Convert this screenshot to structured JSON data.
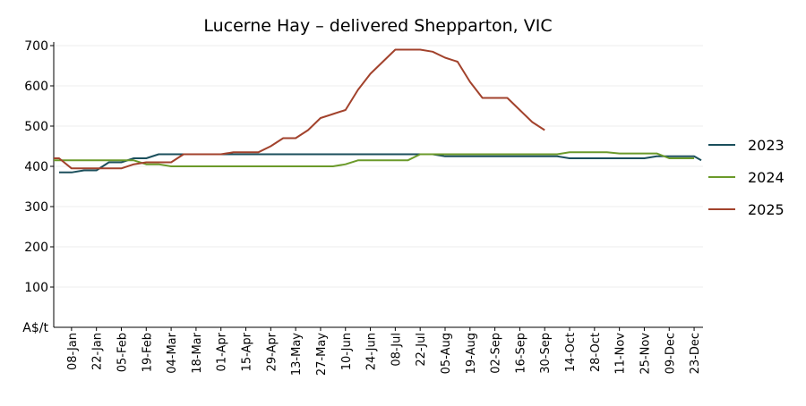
{
  "chart_data": {
    "type": "line",
    "title": "Lucerne Hay – delivered Shepparton, VIC",
    "xlabel": "",
    "ylabel": "A$/t",
    "ylim": [
      0,
      700
    ],
    "yticks": [
      700,
      600,
      500,
      400,
      300,
      200,
      100
    ],
    "x_range": [
      0,
      357
    ],
    "categories": [
      "08-Jan",
      "22-Jan",
      "05-Feb",
      "19-Feb",
      "04-Mar",
      "18-Mar",
      "01-Apr",
      "15-Apr",
      "29-Apr",
      "13-May",
      "27-May",
      "10-Jun",
      "24-Jun",
      "08-Jul",
      "22-Jul",
      "05-Aug",
      "19-Aug",
      "02-Sep",
      "16-Sep",
      "30-Sep",
      "14-Oct",
      "28-Oct",
      "11-Nov",
      "25-Nov",
      "09-Dec",
      "23-Dec"
    ],
    "category_x": [
      7,
      21,
      35,
      49,
      63,
      77,
      91,
      105,
      119,
      133,
      147,
      161,
      175,
      189,
      203,
      217,
      231,
      245,
      259,
      273,
      287,
      301,
      315,
      329,
      343,
      357
    ],
    "grid": true,
    "legend_position": "right",
    "series": [
      {
        "name": "2023",
        "color": "#1b4f5c",
        "x": [
          0,
          7,
          14,
          21,
          28,
          35,
          42,
          49,
          56,
          63,
          70,
          77,
          84,
          91,
          98,
          105,
          112,
          119,
          126,
          133,
          140,
          147,
          154,
          161,
          168,
          175,
          182,
          189,
          196,
          203,
          210,
          217,
          224,
          231,
          238,
          245,
          252,
          259,
          266,
          273,
          280,
          287,
          294,
          301,
          308,
          315,
          322,
          329,
          336,
          343,
          350,
          357,
          361
        ],
        "values": [
          385,
          385,
          390,
          390,
          410,
          410,
          420,
          420,
          430,
          430,
          430,
          430,
          430,
          430,
          430,
          430,
          430,
          430,
          430,
          430,
          430,
          430,
          430,
          430,
          430,
          430,
          430,
          430,
          430,
          430,
          430,
          425,
          425,
          425,
          425,
          425,
          425,
          425,
          425,
          425,
          425,
          420,
          420,
          420,
          420,
          420,
          420,
          420,
          425,
          425,
          425,
          425,
          415
        ]
      },
      {
        "name": "2024",
        "color": "#6b9a2a",
        "x": [
          -3,
          0,
          7,
          14,
          21,
          28,
          35,
          42,
          49,
          56,
          63,
          70,
          77,
          84,
          91,
          98,
          105,
          112,
          119,
          126,
          133,
          140,
          147,
          154,
          161,
          168,
          175,
          182,
          189,
          196,
          203,
          210,
          217,
          224,
          231,
          238,
          245,
          252,
          259,
          266,
          273,
          280,
          287,
          294,
          301,
          308,
          315,
          322,
          329,
          336,
          343,
          350,
          357
        ],
        "values": [
          415,
          415,
          415,
          415,
          415,
          415,
          415,
          415,
          405,
          405,
          400,
          400,
          400,
          400,
          400,
          400,
          400,
          400,
          400,
          400,
          400,
          400,
          400,
          400,
          405,
          415,
          415,
          415,
          415,
          415,
          430,
          430,
          430,
          430,
          430,
          430,
          430,
          430,
          430,
          430,
          430,
          430,
          435,
          435,
          435,
          435,
          432,
          432,
          432,
          432,
          420,
          420,
          420
        ]
      },
      {
        "name": "2025",
        "color": "#a2422c",
        "x": [
          -3,
          0,
          7,
          14,
          21,
          28,
          35,
          42,
          49,
          56,
          63,
          70,
          77,
          84,
          91,
          98,
          105,
          112,
          119,
          126,
          133,
          140,
          147,
          154,
          161,
          168,
          175,
          182,
          189,
          196,
          203,
          210,
          217,
          224,
          231,
          238,
          245,
          252,
          259,
          266,
          273
        ],
        "values": [
          420,
          420,
          395,
          395,
          395,
          395,
          395,
          405,
          410,
          410,
          410,
          430,
          430,
          430,
          430,
          435,
          435,
          435,
          450,
          470,
          470,
          490,
          520,
          530,
          540,
          590,
          630,
          660,
          690,
          690,
          690,
          685,
          670,
          660,
          610,
          570,
          570,
          570,
          540,
          510,
          490
        ]
      }
    ]
  }
}
